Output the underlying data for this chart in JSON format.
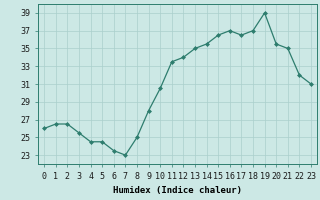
{
  "x": [
    0,
    1,
    2,
    3,
    4,
    5,
    6,
    7,
    8,
    9,
    10,
    11,
    12,
    13,
    14,
    15,
    16,
    17,
    18,
    19,
    20,
    21,
    22,
    23
  ],
  "y": [
    26,
    26.5,
    26.5,
    25.5,
    24.5,
    24.5,
    23.5,
    23,
    25,
    28,
    30.5,
    33.5,
    34,
    35,
    35.5,
    36.5,
    37,
    36.5,
    37,
    39,
    35.5,
    35,
    32,
    31
  ],
  "line_color": "#2e7d6e",
  "marker_color": "#2e7d6e",
  "bg_color": "#cce8e5",
  "grid_color": "#aacfcc",
  "xlabel": "Humidex (Indice chaleur)",
  "xlim": [
    -0.5,
    23.5
  ],
  "ylim": [
    22,
    40
  ],
  "yticks": [
    23,
    25,
    27,
    29,
    31,
    33,
    35,
    37,
    39
  ],
  "xtick_labels": [
    "0",
    "1",
    "2",
    "3",
    "4",
    "5",
    "6",
    "7",
    "8",
    "9",
    "10",
    "11",
    "12",
    "13",
    "14",
    "15",
    "16",
    "17",
    "18",
    "19",
    "20",
    "21",
    "22",
    "23"
  ],
  "xlabel_fontsize": 6.5,
  "tick_fontsize": 6
}
